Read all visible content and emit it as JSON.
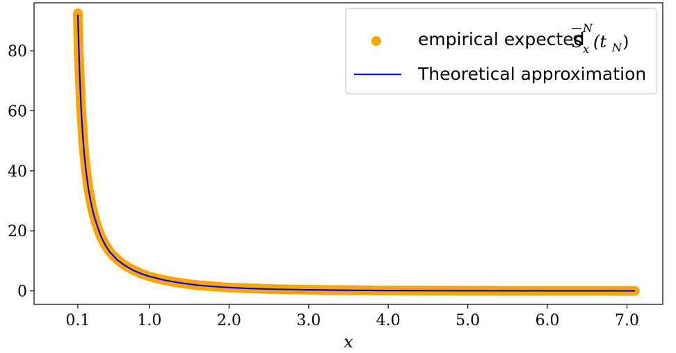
{
  "chart_data": {
    "type": "scatter",
    "xlabel": "x",
    "ylabel": "",
    "xlim": [
      -0.45,
      7.45
    ],
    "ylim": [
      -4.5,
      96
    ],
    "x_ticks": [
      0.1,
      1.0,
      2.0,
      3.0,
      4.0,
      5.0,
      6.0,
      7.0
    ],
    "x_tick_labels": [
      "0.1",
      "1.0",
      "2.0",
      "3.0",
      "4.0",
      "5.0",
      "6.0",
      "7.0"
    ],
    "y_ticks": [
      0,
      20,
      40,
      60,
      80
    ],
    "y_tick_labels": [
      "0",
      "20",
      "40",
      "60",
      "80"
    ],
    "grid": false,
    "legend_position": "top-right",
    "colors": {
      "scatter": "#FFA500",
      "line": "#0000FF"
    },
    "legend": {
      "scatter": {
        "text": "empirical expected",
        "math_base": "S",
        "math_sup": "N",
        "math_sub": "x",
        "math_arg": "(t",
        "math_arg_sub": "N",
        "math_close": ")"
      },
      "line": {
        "text": "Theoretical approximation"
      }
    },
    "series": [
      {
        "kind": "scatter",
        "x": [
          0.1,
          0.11,
          0.12,
          0.13,
          0.14,
          0.15,
          0.16,
          0.17,
          0.18,
          0.19,
          0.2,
          0.21,
          0.22,
          0.23,
          0.24,
          0.25,
          0.26,
          0.27,
          0.28,
          0.29,
          0.3,
          0.32,
          0.34,
          0.36,
          0.38,
          0.4,
          0.42,
          0.45,
          0.48,
          0.5,
          0.55,
          0.6,
          0.65,
          0.7,
          0.75,
          0.8,
          0.9,
          1.0,
          1.1,
          1.2,
          1.3,
          1.4,
          1.5,
          1.6,
          1.8,
          2.0,
          2.2,
          2.4,
          2.6,
          2.8,
          3.0,
          3.25,
          3.5,
          3.75,
          4.0,
          4.25,
          4.5,
          4.75,
          5.0,
          5.25,
          5.5,
          5.75,
          6.0,
          6.25,
          6.5,
          6.75,
          7.0,
          7.1
        ],
        "y": [
          92.5,
          80.5,
          74.0,
          68.5,
          61.2,
          57.2,
          53.7,
          49.0,
          46.2,
          43.5,
          41.2,
          38.7,
          36.6,
          34.8,
          33.1,
          31.6,
          30.2,
          28.8,
          27.6,
          26.4,
          25.3,
          23.4,
          21.7,
          20.2,
          18.8,
          17.6,
          16.5,
          15.1,
          13.9,
          13.1,
          11.6,
          10.4,
          9.3,
          8.4,
          7.6,
          6.9,
          5.7,
          4.8,
          4.1,
          3.5,
          3.0,
          2.6,
          2.2,
          1.9,
          1.5,
          1.1,
          0.9,
          0.7,
          0.55,
          0.45,
          0.35,
          0.28,
          0.22,
          0.17,
          0.13,
          0.1,
          0.08,
          0.06,
          0.05,
          0.04,
          0.03,
          0.02,
          0.02,
          0.01,
          0.01,
          0.01,
          0.0,
          0.0
        ]
      },
      {
        "kind": "line",
        "x": [
          0.1,
          0.12,
          0.14,
          0.16,
          0.18,
          0.2,
          0.23,
          0.26,
          0.3,
          0.35,
          0.4,
          0.45,
          0.5,
          0.6,
          0.7,
          0.8,
          0.9,
          1.0,
          1.2,
          1.4,
          1.6,
          1.8,
          2.0,
          2.3,
          2.6,
          3.0,
          3.5,
          4.0,
          4.5,
          5.0,
          5.5,
          6.0,
          6.5,
          7.0,
          7.1
        ],
        "y": [
          92.0,
          74.0,
          61.5,
          52.5,
          45.7,
          40.6,
          34.5,
          30.0,
          25.3,
          21.1,
          17.6,
          15.0,
          13.0,
          10.2,
          8.3,
          6.8,
          5.7,
          4.8,
          3.5,
          2.6,
          1.9,
          1.45,
          1.1,
          0.75,
          0.52,
          0.33,
          0.19,
          0.11,
          0.07,
          0.04,
          0.03,
          0.02,
          0.01,
          0.0,
          0.0
        ]
      }
    ]
  }
}
